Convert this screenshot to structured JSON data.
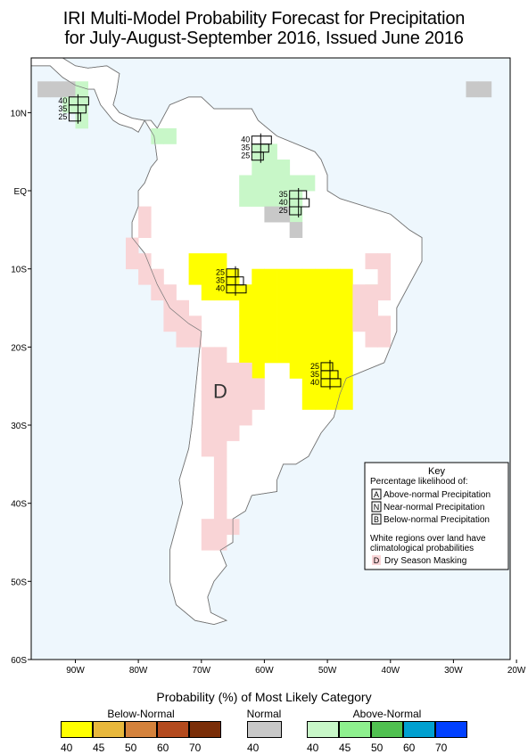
{
  "title": {
    "line1": "IRI Multi-Model Probability Forecast for Precipitation",
    "line2": "for July-August-September 2016, Issued June 2016"
  },
  "axes": {
    "lat_labels": [
      "10N",
      "EQ",
      "10S",
      "20S",
      "30S",
      "40S",
      "50S",
      "60S"
    ],
    "lon_labels": [
      "90W",
      "80W",
      "70W",
      "60W",
      "50W",
      "40W",
      "30W",
      "20W"
    ]
  },
  "map_extent": {
    "lon_min": -97,
    "lon_max": -21,
    "lat_min": -60,
    "lat_max": 17
  },
  "colors": {
    "ocean": "#eef7fd",
    "land": "#ffffff",
    "dry_mask": "#f9d4d6",
    "below_40": "#ffff00",
    "normal_40": "#c8c8c8",
    "above_40": "#c8f7c8"
  },
  "regions": [
    {
      "category": "normal",
      "cells": [
        [
          -95,
          13
        ],
        [
          -93,
          13
        ],
        [
          -91,
          13
        ],
        [
          -27,
          13
        ],
        [
          -25,
          13
        ]
      ]
    },
    {
      "category": "above",
      "cells": [
        [
          -89,
          13
        ],
        [
          -89,
          11
        ],
        [
          -91,
          11
        ],
        [
          -89,
          9
        ],
        [
          -77,
          7
        ],
        [
          -75,
          7
        ],
        [
          -61,
          5
        ],
        [
          -59,
          5
        ],
        [
          -61,
          3
        ],
        [
          -59,
          3
        ],
        [
          -57,
          3
        ],
        [
          -63,
          1
        ],
        [
          -61,
          1
        ],
        [
          -59,
          1
        ],
        [
          -57,
          1
        ],
        [
          -55,
          1
        ],
        [
          -53,
          1
        ],
        [
          -63,
          -1
        ],
        [
          -61,
          -1
        ],
        [
          -59,
          -1
        ],
        [
          -57,
          -1
        ],
        [
          -55,
          -1
        ],
        [
          -55,
          -3
        ],
        [
          -43,
          -13
        ],
        [
          -43,
          -15
        ],
        [
          -43,
          -17
        ]
      ]
    },
    {
      "category": "normal",
      "cells": [
        [
          -59,
          -3
        ],
        [
          -57,
          -3
        ],
        [
          -55,
          -5
        ]
      ]
    },
    {
      "category": "below",
      "cells": [
        [
          -71,
          -9
        ],
        [
          -69,
          -9
        ],
        [
          -67,
          -9
        ],
        [
          -71,
          -11
        ],
        [
          -69,
          -11
        ],
        [
          -67,
          -11
        ],
        [
          -65,
          -11
        ],
        [
          -61,
          -11
        ],
        [
          -59,
          -11
        ],
        [
          -57,
          -11
        ],
        [
          -55,
          -11
        ],
        [
          -53,
          -11
        ],
        [
          -51,
          -11
        ],
        [
          -49,
          -11
        ],
        [
          -47,
          -11
        ],
        [
          -69,
          -13
        ],
        [
          -67,
          -13
        ],
        [
          -65,
          -13
        ],
        [
          -63,
          -13
        ],
        [
          -61,
          -13
        ],
        [
          -59,
          -13
        ],
        [
          -57,
          -13
        ],
        [
          -55,
          -13
        ],
        [
          -53,
          -13
        ],
        [
          -51,
          -13
        ],
        [
          -49,
          -13
        ],
        [
          -47,
          -13
        ],
        [
          -63,
          -15
        ],
        [
          -61,
          -15
        ],
        [
          -59,
          -15
        ],
        [
          -57,
          -15
        ],
        [
          -55,
          -15
        ],
        [
          -53,
          -15
        ],
        [
          -51,
          -15
        ],
        [
          -49,
          -15
        ],
        [
          -47,
          -15
        ],
        [
          -63,
          -17
        ],
        [
          -61,
          -17
        ],
        [
          -59,
          -17
        ],
        [
          -57,
          -17
        ],
        [
          -55,
          -17
        ],
        [
          -53,
          -17
        ],
        [
          -51,
          -17
        ],
        [
          -49,
          -17
        ],
        [
          -47,
          -17
        ],
        [
          -63,
          -19
        ],
        [
          -61,
          -19
        ],
        [
          -59,
          -19
        ],
        [
          -57,
          -19
        ],
        [
          -55,
          -19
        ],
        [
          -53,
          -19
        ],
        [
          -51,
          -19
        ],
        [
          -49,
          -19
        ],
        [
          -47,
          -19
        ],
        [
          -63,
          -21
        ],
        [
          -61,
          -21
        ],
        [
          -59,
          -21
        ],
        [
          -57,
          -21
        ],
        [
          -55,
          -21
        ],
        [
          -53,
          -21
        ],
        [
          -51,
          -21
        ],
        [
          -49,
          -21
        ],
        [
          -47,
          -21
        ],
        [
          -61,
          -23
        ],
        [
          -55,
          -23
        ],
        [
          -53,
          -23
        ],
        [
          -51,
          -23
        ],
        [
          -49,
          -23
        ],
        [
          -47,
          -23
        ],
        [
          -53,
          -25
        ],
        [
          -51,
          -25
        ],
        [
          -49,
          -25
        ],
        [
          -47,
          -25
        ],
        [
          -53,
          -27
        ],
        [
          -51,
          -27
        ],
        [
          -49,
          -27
        ],
        [
          -47,
          -27
        ]
      ]
    },
    {
      "category": "dry",
      "cells": [
        [
          -79,
          -3
        ],
        [
          -79,
          -5
        ],
        [
          -81,
          -7
        ],
        [
          -81,
          -9
        ],
        [
          -79,
          -9
        ],
        [
          -79,
          -11
        ],
        [
          -77,
          -11
        ],
        [
          -77,
          -13
        ],
        [
          -75,
          -13
        ],
        [
          -75,
          -15
        ],
        [
          -73,
          -15
        ],
        [
          -75,
          -17
        ],
        [
          -73,
          -17
        ],
        [
          -71,
          -17
        ],
        [
          -73,
          -19
        ],
        [
          -71,
          -19
        ],
        [
          -69,
          -21
        ],
        [
          -67,
          -21
        ],
        [
          -69,
          -23
        ],
        [
          -67,
          -23
        ],
        [
          -65,
          -23
        ],
        [
          -63,
          -23
        ],
        [
          -61,
          -25
        ],
        [
          -69,
          -25
        ],
        [
          -67,
          -25
        ],
        [
          -65,
          -25
        ],
        [
          -63,
          -25
        ],
        [
          -69,
          -27
        ],
        [
          -67,
          -27
        ],
        [
          -65,
          -27
        ],
        [
          -63,
          -27
        ],
        [
          -61,
          -27
        ],
        [
          -69,
          -29
        ],
        [
          -67,
          -29
        ],
        [
          -65,
          -29
        ],
        [
          -63,
          -29
        ],
        [
          -69,
          -31
        ],
        [
          -67,
          -31
        ],
        [
          -65,
          -31
        ],
        [
          -69,
          -33
        ],
        [
          -67,
          -33
        ],
        [
          -67,
          -35
        ],
        [
          -67,
          -37
        ],
        [
          -67,
          -39
        ],
        [
          -67,
          -41
        ],
        [
          -69,
          -43
        ],
        [
          -67,
          -43
        ],
        [
          -65,
          -43
        ],
        [
          -67,
          -45
        ],
        [
          -69,
          -45
        ],
        [
          -43,
          -9
        ],
        [
          -41,
          -9
        ],
        [
          -41,
          -11
        ],
        [
          -45,
          -13
        ],
        [
          -43,
          -13
        ],
        [
          -41,
          -13
        ],
        [
          -43,
          -15
        ],
        [
          -43,
          -17
        ],
        [
          -41,
          -17
        ],
        [
          -43,
          -19
        ],
        [
          -41,
          -19
        ],
        [
          -45,
          -15
        ],
        [
          -45,
          -17
        ]
      ]
    }
  ],
  "prob_boxes": [
    {
      "anchor": [
        -91,
        12
      ],
      "labels": [
        "40",
        "35",
        "25"
      ]
    },
    {
      "anchor": [
        -62,
        7
      ],
      "labels": [
        "40",
        "35",
        "25"
      ]
    },
    {
      "anchor": [
        -56,
        0
      ],
      "labels": [
        "35",
        "40",
        "25"
      ]
    },
    {
      "anchor": [
        -66,
        -10
      ],
      "labels": [
        "25",
        "35",
        "40"
      ]
    },
    {
      "anchor": [
        -51,
        -22
      ],
      "labels": [
        "25",
        "35",
        "40"
      ]
    }
  ],
  "dry_marker": "D",
  "key": {
    "title": "Key",
    "subtitle": "Percentage likelihood of:",
    "items": [
      {
        "letter": "A",
        "label": "Above-normal Precipitation"
      },
      {
        "letter": "N",
        "label": "Near-normal Precipitation"
      },
      {
        "letter": "B",
        "label": "Below-normal Precipitation"
      }
    ],
    "note_line1": "White regions over land have",
    "note_line2": "climatological probabilities",
    "dry_letter": "D",
    "dry_label": "Dry Season Masking"
  },
  "colorbar": {
    "title": "Probability (%) of Most Likely Category",
    "groups": [
      {
        "name": "Below-Normal",
        "colors": [
          "#ffff00",
          "#e8b83c",
          "#d4823c",
          "#b34a1e",
          "#7a2e08"
        ],
        "ticks": [
          "40",
          "45",
          "50",
          "60",
          "70"
        ]
      },
      {
        "name": "Normal",
        "colors": [
          "#c8c8c8"
        ],
        "ticks": [
          "40"
        ]
      },
      {
        "name": "Above-Normal",
        "colors": [
          "#c8f7c8",
          "#8ef08e",
          "#50c050",
          "#00a0d0",
          "#0040ff"
        ],
        "ticks": [
          "40",
          "45",
          "50",
          "60",
          "70"
        ]
      }
    ]
  }
}
